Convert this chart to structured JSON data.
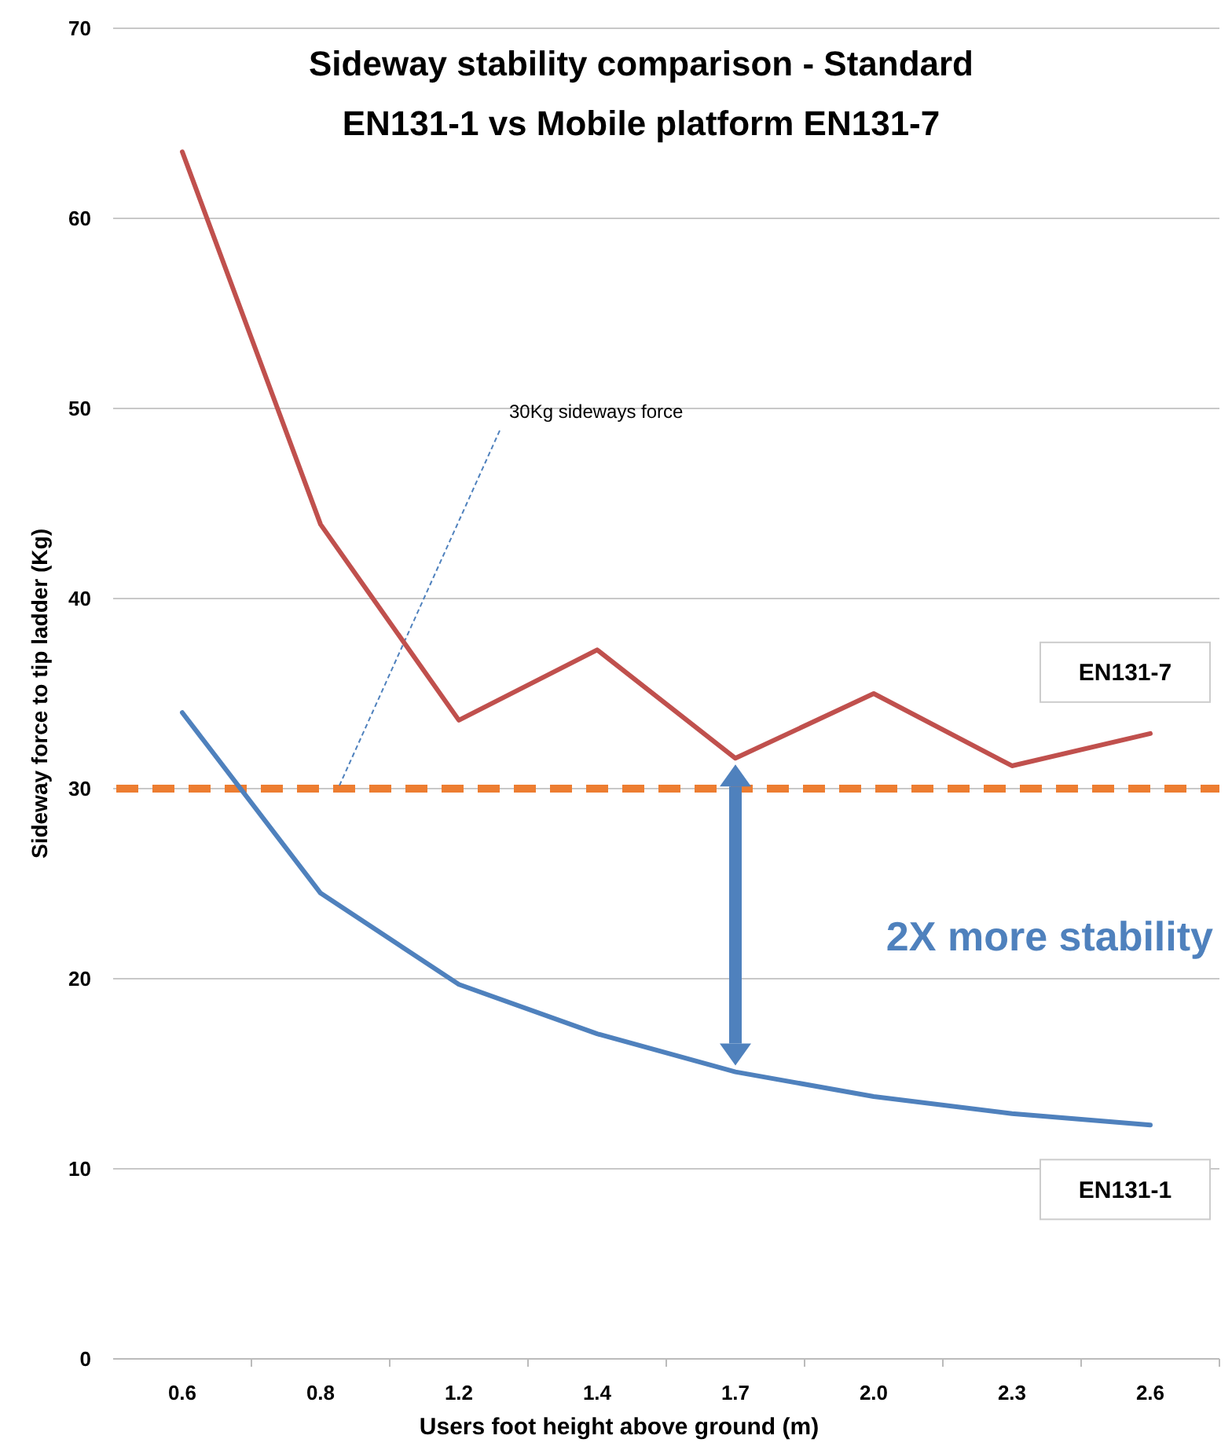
{
  "chart_data": {
    "type": "line",
    "title": "Sideway stability comparison - Standard EN131-1 vs Mobile platform EN131-7",
    "xlabel": "Users foot height above ground (m)",
    "ylabel": "Sideway force to tip ladder (Kg)",
    "categories": [
      "0.6",
      "0.8",
      "1.2",
      "1.4",
      "1.7",
      "2.0",
      "2.3",
      "2.6"
    ],
    "series": [
      {
        "name": "EN131-7",
        "color": "#c0504d",
        "values": [
          63.5,
          43.9,
          33.6,
          37.3,
          31.6,
          35.0,
          31.2,
          32.9
        ]
      },
      {
        "name": "EN131-1",
        "color": "#4f81bd",
        "values": [
          34.0,
          24.5,
          19.7,
          17.1,
          15.1,
          13.8,
          12.9,
          12.3
        ]
      }
    ],
    "ylim": [
      0,
      70
    ],
    "yticks": [
      0,
      10,
      20,
      30,
      40,
      50,
      60,
      70
    ],
    "grid": "y",
    "line_style": "solid",
    "ref_lines": [
      {
        "axis": "y",
        "value": 30,
        "label": "30Kg sideways force",
        "color": "#ed7d31",
        "line_style": "dashed"
      }
    ],
    "annotations": [
      "2X more stability"
    ]
  }
}
